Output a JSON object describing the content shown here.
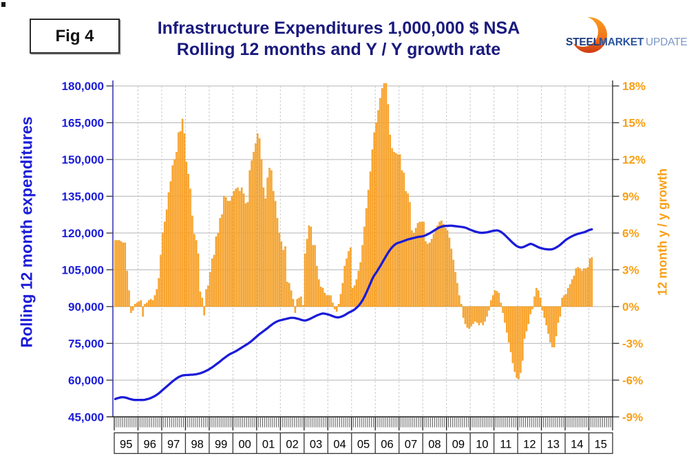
{
  "fig_label": "Fig 4",
  "title": {
    "line1": "Infrastructure Expenditures 1,000,000 $ NSA",
    "line2": "Rolling 12 months and Y / Y growth rate"
  },
  "logo": {
    "word1": "STEEL",
    "word2": "MARKET",
    "word3": "UPDATE"
  },
  "left_axis": {
    "title": "Rolling 12 month expenditures",
    "color": "#1b1cd8",
    "tick_labels": [
      "180,000",
      "165,000",
      "150,000",
      "135,000",
      "120,000",
      "105,000",
      "90,000",
      "75,000",
      "60,000",
      "45,000"
    ]
  },
  "right_axis": {
    "title": "12 month y / y growth",
    "color": "#F89F15",
    "tick_labels": [
      "18%",
      "15%",
      "12%",
      "9%",
      "6%",
      "3%",
      "0%",
      "-3%",
      "-6%",
      "-9%"
    ]
  },
  "x_axis": {
    "year_labels": [
      "95",
      "96",
      "97",
      "98",
      "99",
      "00",
      "01",
      "02",
      "03",
      "04",
      "05",
      "06",
      "07",
      "08",
      "09",
      "10",
      "11",
      "12",
      "13",
      "14",
      "15"
    ]
  },
  "chart_data": {
    "type": "bar+line",
    "title": "Infrastructure Expenditures 1,000,000 $ NSA — Rolling 12 months and Y / Y growth rate",
    "x": {
      "start": "1995-01",
      "end": "2015-02",
      "freq": "monthly",
      "points": 242
    },
    "left_ylim": [
      45000,
      180000
    ],
    "left_tick_step": 15000,
    "right_ylim": [
      -9,
      18
    ],
    "right_tick_step": 3,
    "grid": {
      "horizontal": "solid gray each 15,000 / 3%",
      "vertical": "dashed gray at each year boundary"
    },
    "series": [
      {
        "name": "Rolling 12 month expenditures",
        "type": "line",
        "axis": "left",
        "color": "#1b1cd8",
        "values": [
          52300,
          52600,
          52800,
          53000,
          53000,
          52900,
          52700,
          52400,
          52200,
          52000,
          51900,
          51900,
          51900,
          51900,
          51900,
          52000,
          52200,
          52400,
          52700,
          53100,
          53500,
          54000,
          54600,
          55300,
          56000,
          56700,
          57400,
          58100,
          58800,
          59500,
          60100,
          60700,
          61200,
          61600,
          61900,
          62000,
          62100,
          62100,
          62200,
          62200,
          62300,
          62400,
          62600,
          62800,
          63100,
          63400,
          63800,
          64200,
          64700,
          65200,
          65800,
          66400,
          67000,
          67600,
          68300,
          68900,
          69500,
          70100,
          70600,
          71000,
          71400,
          71800,
          72300,
          72800,
          73300,
          73800,
          74300,
          74800,
          75400,
          76000,
          76700,
          77400,
          78100,
          78800,
          79400,
          80000,
          80600,
          81200,
          81900,
          82500,
          83100,
          83600,
          84000,
          84300,
          84500,
          84700,
          84900,
          85100,
          85300,
          85400,
          85400,
          85300,
          85100,
          84900,
          84600,
          84400,
          84300,
          84500,
          84800,
          85200,
          85600,
          86000,
          86400,
          86700,
          87000,
          87200,
          87100,
          86900,
          86700,
          86400,
          86100,
          85800,
          85600,
          85600,
          85800,
          86100,
          86500,
          87000,
          87500,
          87900,
          88300,
          88800,
          89500,
          90300,
          91300,
          92500,
          94000,
          95700,
          97500,
          99400,
          101300,
          102800,
          103900,
          105200,
          106500,
          107900,
          109300,
          110700,
          112000,
          113200,
          114200,
          115000,
          115600,
          116000,
          116200,
          116500,
          116800,
          117100,
          117400,
          117600,
          117800,
          118000,
          118200,
          118400,
          118500,
          118600,
          118800,
          119100,
          119500,
          119900,
          120400,
          120900,
          121400,
          121900,
          122300,
          122600,
          122800,
          122900,
          122900,
          123000,
          123000,
          122900,
          122800,
          122700,
          122600,
          122500,
          122400,
          122200,
          121900,
          121500,
          121200,
          120900,
          120600,
          120400,
          120200,
          120100,
          120100,
          120200,
          120300,
          120500,
          120700,
          120900,
          121000,
          121100,
          120900,
          120500,
          119900,
          119200,
          118400,
          117600,
          116800,
          116000,
          115300,
          114700,
          114300,
          114100,
          114200,
          114500,
          114900,
          115300,
          115600,
          115400,
          115000,
          114600,
          114200,
          113900,
          113700,
          113500,
          113400,
          113300,
          113300,
          113400,
          113700,
          114100,
          114600,
          115200,
          115900,
          116600,
          117300,
          117800,
          118300,
          118700,
          119100,
          119400,
          119700,
          119900,
          120100,
          120300,
          120600,
          121000,
          121300,
          121500
        ]
      },
      {
        "name": "12 month y / y growth",
        "type": "bar",
        "axis": "right",
        "unit": "%",
        "color": "#F9A424",
        "values": [
          5.4,
          5.4,
          5.4,
          5.3,
          5.2,
          5.2,
          2.9,
          1.3,
          -0.5,
          -0.3,
          0.2,
          0.3,
          0.4,
          0.5,
          -0.8,
          0.2,
          0.3,
          0.5,
          0.6,
          0.5,
          0.9,
          1.4,
          2.3,
          4.2,
          6.0,
          6.9,
          7.9,
          9.3,
          10.2,
          11.5,
          12.0,
          12.6,
          14.2,
          14.3,
          15.3,
          14.1,
          11.8,
          10.8,
          9.6,
          7.4,
          5.9,
          5.4,
          4.3,
          1.2,
          0.7,
          -0.7,
          1.4,
          1.7,
          2.8,
          3.9,
          4.2,
          5.7,
          6.0,
          7.2,
          7.5,
          9.0,
          8.9,
          8.6,
          8.6,
          9.0,
          9.4,
          9.6,
          9.7,
          9.4,
          9.7,
          9.2,
          8.4,
          8.5,
          11.1,
          11.9,
          12.6,
          13.3,
          14.1,
          13.7,
          12.0,
          9.7,
          8.8,
          10.5,
          11.3,
          11.1,
          9.4,
          8.6,
          7.2,
          6.0,
          5.3,
          4.6,
          4.9,
          2.0,
          1.9,
          1.3,
          0.6,
          -0.5,
          0.6,
          0.7,
          0.8,
          0.1,
          4.3,
          5.5,
          6.6,
          6.5,
          5.0,
          5.0,
          3.3,
          2.2,
          1.6,
          1.5,
          1.1,
          0.9,
          0.9,
          0.9,
          0.3,
          -0.2,
          -0.4,
          0.2,
          1.0,
          1.9,
          3.3,
          3.9,
          4.5,
          4.8,
          1.5,
          1.7,
          2.2,
          2.9,
          3.6,
          5.0,
          6.5,
          8.0,
          9.5,
          11.0,
          12.8,
          14.2,
          15.0,
          16.0,
          17.0,
          17.8,
          18.2,
          18.2,
          16.5,
          14.0,
          12.9,
          12.6,
          12.5,
          12.4,
          12.4,
          11.1,
          10.9,
          9.4,
          9.2,
          8.5,
          6.2,
          6.0,
          6.4,
          6.8,
          6.9,
          6.9,
          6.9,
          5.3,
          5.1,
          5.2,
          5.5,
          5.9,
          6.3,
          6.6,
          6.9,
          7.0,
          6.7,
          6.4,
          6.2,
          5.6,
          4.7,
          3.8,
          2.8,
          1.9,
          0.9,
          0.2,
          -0.9,
          -1.4,
          -1.7,
          -1.8,
          -1.6,
          -1.4,
          -1.2,
          -1.3,
          -1.5,
          -1.3,
          -1.5,
          -1.2,
          -0.8,
          -0.3,
          0.5,
          0.9,
          1.3,
          1.25,
          1.1,
          0.3,
          -0.5,
          -1.3,
          -2.1,
          -2.9,
          -3.7,
          -4.6,
          -5.3,
          -5.8,
          -5.9,
          -5.4,
          -4.4,
          -2.6,
          -2.0,
          -1.4,
          -0.6,
          -0.2,
          0.8,
          1.5,
          1.3,
          0.7,
          -0.3,
          -0.9,
          -1.5,
          -2.2,
          -2.9,
          -3.3,
          -3.3,
          -2.4,
          -1.3,
          -0.8,
          0.7,
          0.9,
          1.0,
          1.5,
          1.8,
          2.2,
          2.5,
          3.1,
          3.2,
          3.1,
          2.9,
          3.1,
          3.1,
          3.2,
          3.9,
          4.0
        ]
      }
    ]
  }
}
